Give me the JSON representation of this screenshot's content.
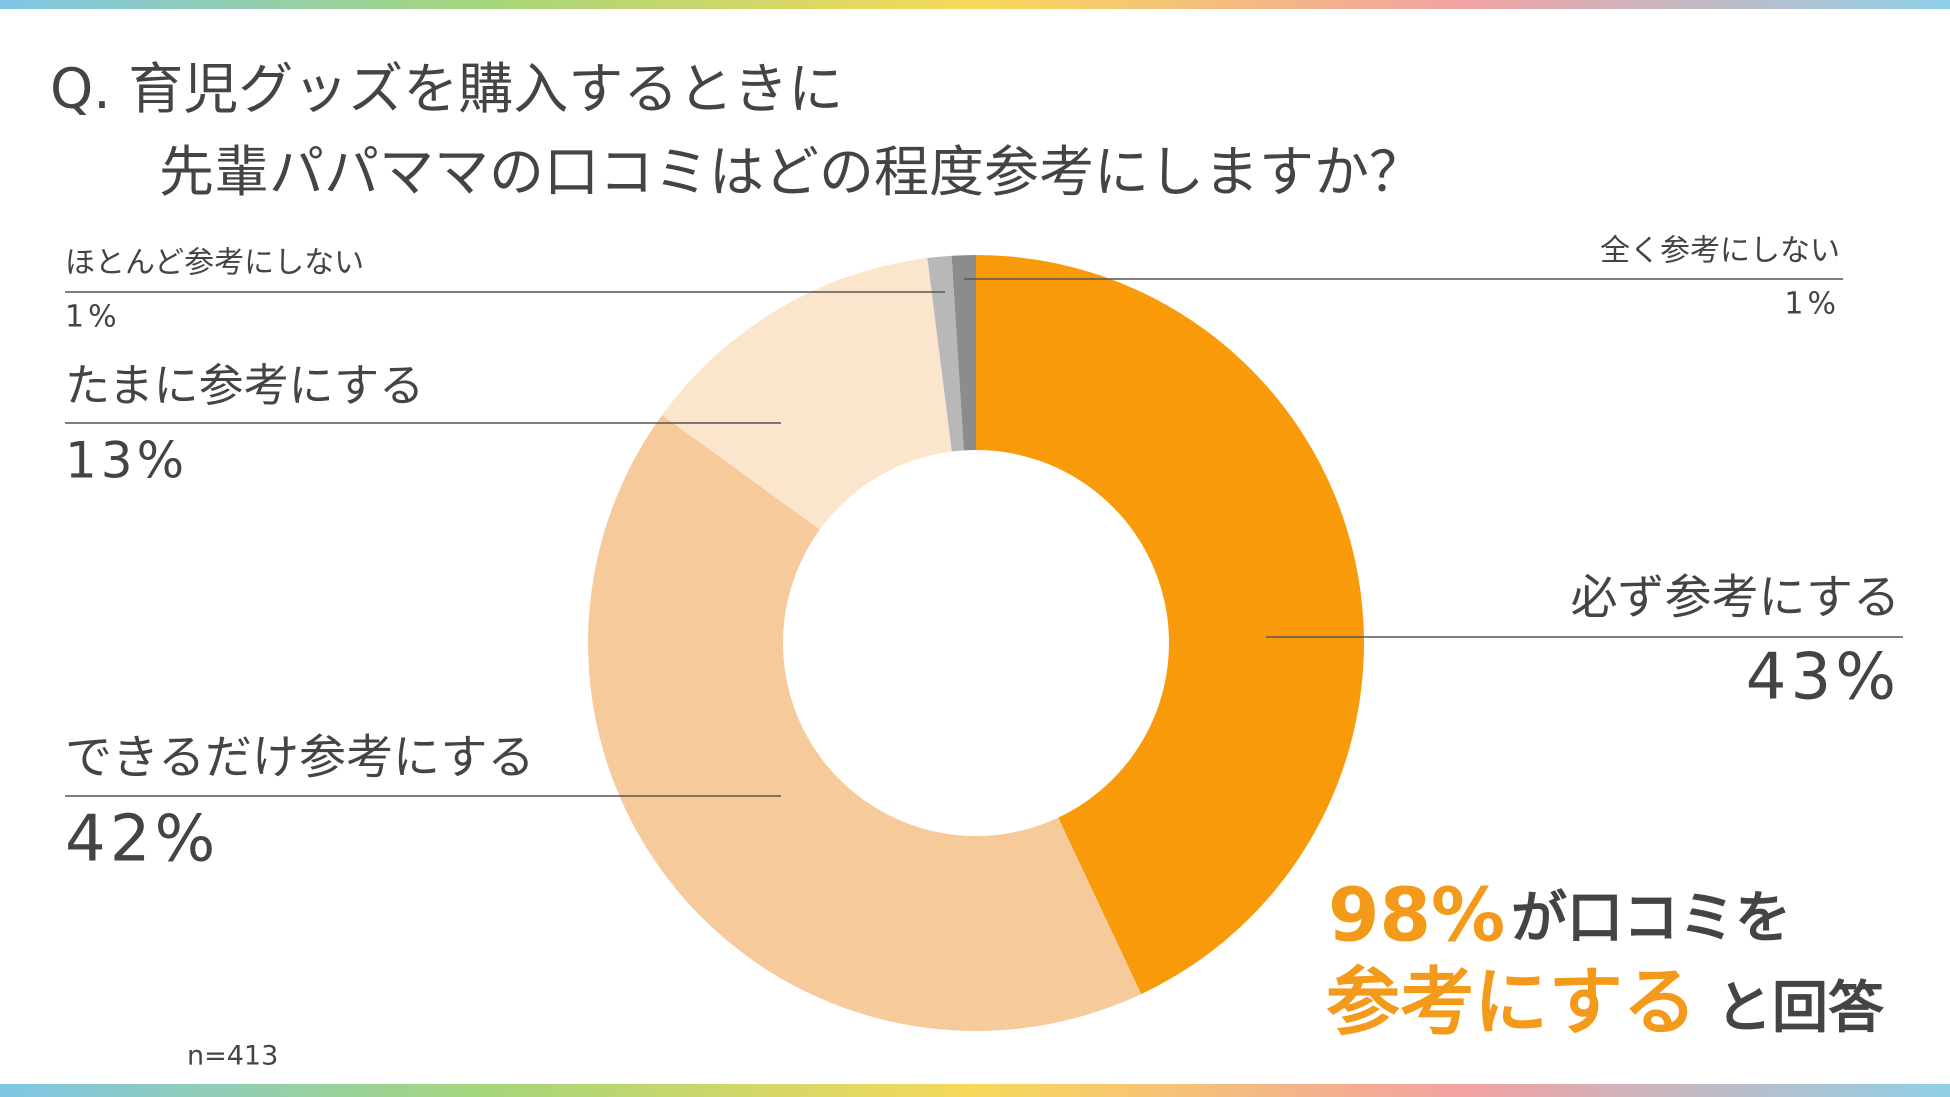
{
  "chart_data": {
    "type": "donut",
    "title": [
      "Q. 育児グッズを購入するときに",
      "先輩パパママの口コミはどの程度参考にしますか？"
    ],
    "categories": [
      "必ず参考にする",
      "できるだけ参考にする",
      "たまに参考にする",
      "ほとんど参考にしない",
      "全く参考にしない"
    ],
    "values": [
      43,
      42,
      13,
      1,
      1
    ],
    "value_labels": [
      "43%",
      "42%",
      "13%",
      "1%",
      "1%"
    ],
    "colors": [
      "#f99a0a",
      "#f7ca9c",
      "#fbe5cc",
      "#b8b8b8",
      "#8c8c8c"
    ],
    "annotation": {
      "highlight1": "98%",
      "text1": "が口コミを",
      "highlight2": "参考にする",
      "text2": "と回答"
    },
    "note": "n=413"
  }
}
